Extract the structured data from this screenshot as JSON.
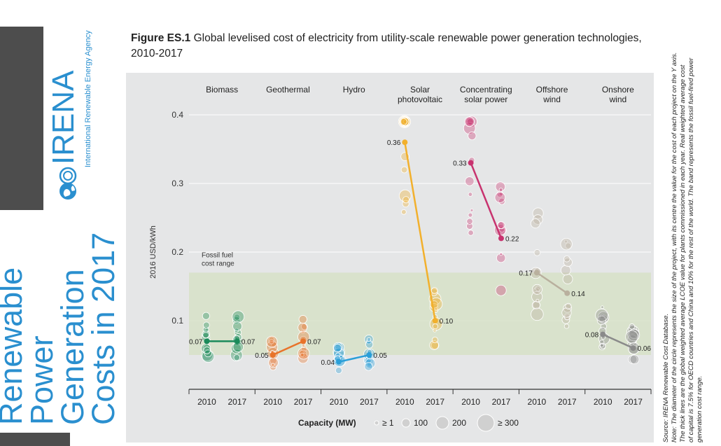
{
  "branding": {
    "org_name": "IRENA",
    "org_full_name": "International Renewable Energy Agency",
    "side_title_lines": [
      "Renewable",
      "Power",
      "Generation",
      "Costs in 2017"
    ],
    "accent_color": "#2a8fcf",
    "dark_panel_color": "#4d4d4d"
  },
  "figure": {
    "label": "Figure ES.1",
    "title_line1": "Global levelised cost of electricity from utility-scale renewable power generation technologies,",
    "title_line2": "2010-2017"
  },
  "notes": {
    "source": "Source: IRENA Renewable Cost Database.",
    "note_lines": [
      "Note: The diameter of the circle represents the size of the project, with its centre the value for the cost of each project on the Y axis.",
      "The thick lines are the global weighted average LCOE value for plants commissioned in each year. Real weighted average cost",
      "of capital is 7.5% for OECD countries and China and 10% for the rest of the world. The band represents the fossil fuel-fired power",
      "generation cost range."
    ]
  },
  "chart_data": {
    "type": "scatter",
    "ylabel": "2016 USD/kWh",
    "ylim": [
      0,
      0.4
    ],
    "yticks": [
      "0.1",
      "0.2",
      "0.3",
      "0.4"
    ],
    "ytick_values": [
      0.1,
      0.2,
      0.3,
      0.4
    ],
    "band_label_lines": [
      "Fossil fuel",
      "cost range"
    ],
    "fossil_band": [
      0.05,
      0.17
    ],
    "band_color": "#d7e0c7",
    "xtick_labels": [
      "2010",
      "2017"
    ],
    "legend": {
      "title": "Capacity (MW)",
      "sizes": [
        "≥ 1",
        "100",
        "200",
        "≥ 300"
      ]
    },
    "series": [
      {
        "name": "Biomass",
        "header_lines": [
          "Biomass"
        ],
        "color": "#1a8a5a",
        "avg_2010": 0.07,
        "avg_2017": 0.07,
        "label_2010": "0.07",
        "label_2017": "0.07"
      },
      {
        "name": "Geothermal",
        "header_lines": [
          "Geothermal"
        ],
        "color": "#e8732a",
        "avg_2010": 0.05,
        "avg_2017": 0.07,
        "label_2010": "0.05",
        "label_2017": "0.07"
      },
      {
        "name": "Hydro",
        "header_lines": [
          "Hydro"
        ],
        "color": "#2a9fd8",
        "avg_2010": 0.04,
        "avg_2017": 0.05,
        "label_2010": "0.04",
        "label_2017": "0.05"
      },
      {
        "name": "Solar photovoltaic",
        "header_lines": [
          "Solar",
          "photovoltaic"
        ],
        "color": "#f2b02c",
        "avg_2010": 0.36,
        "avg_2017": 0.1,
        "label_2010": "0.36",
        "label_2017": "0.10"
      },
      {
        "name": "Concentrating solar power",
        "header_lines": [
          "Concentrating",
          "solar power"
        ],
        "color": "#c8336f",
        "avg_2010": 0.33,
        "avg_2017": 0.22,
        "label_2010": "0.33",
        "label_2017": "0.22"
      },
      {
        "name": "Offshore wind",
        "header_lines": [
          "Offshore",
          "wind"
        ],
        "color": "#b9b09e",
        "avg_2010": 0.17,
        "avg_2017": 0.14,
        "label_2010": "0.17",
        "label_2017": "0.14"
      },
      {
        "name": "Onshore wind",
        "header_lines": [
          "Onshore",
          "wind"
        ],
        "color": "#8a8a8a",
        "avg_2010": 0.08,
        "avg_2017": 0.06,
        "label_2010": "0.08",
        "label_2017": "0.06"
      }
    ]
  }
}
